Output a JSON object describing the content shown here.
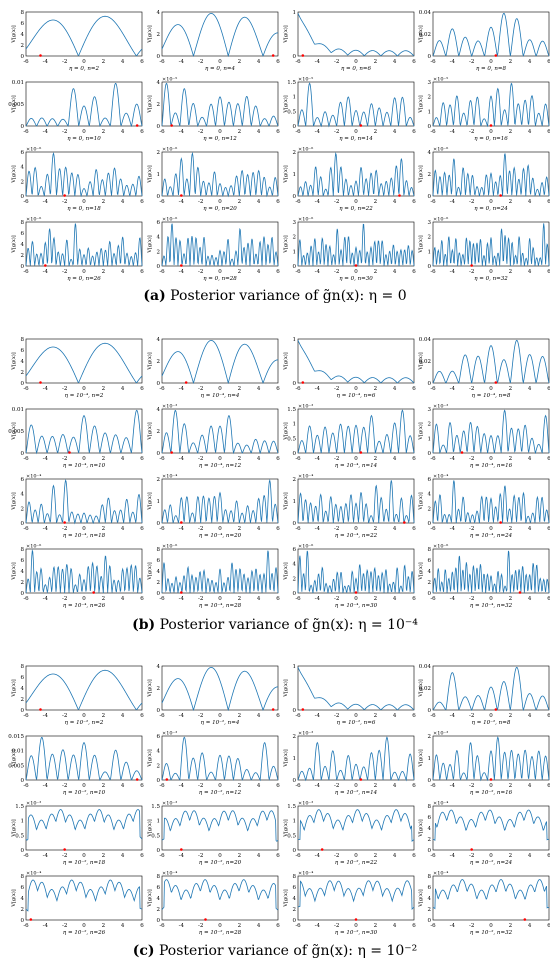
{
  "colors": {
    "curve": "#1f77b4",
    "marker": "#ff0000",
    "axis": "#000000"
  },
  "captions": [
    {
      "label": "(a)",
      "text": "Posterior variance of g̃n(x): η = 0"
    },
    {
      "label": "(b)",
      "text": "Posterior variance of g̃n(x): η = 10⁻⁴"
    },
    {
      "label": "(c)",
      "text": "Posterior variance of g̃n(x): η = 10⁻²"
    }
  ],
  "chart_data": {
    "type": "line",
    "ylabel": "V[g(x)]",
    "xlim": [
      -6,
      6
    ],
    "xticks": [
      "-6",
      "-4",
      "-2",
      "0",
      "2",
      "4",
      "6"
    ],
    "panels": [
      {
        "group": "a",
        "title": "η = 0, n=2",
        "ymax": 8,
        "yticks": [
          "0",
          "2",
          "4",
          "6",
          "8"
        ],
        "exp": "",
        "style": "smooth",
        "lobes": 3,
        "marker": -4.5
      },
      {
        "group": "a",
        "title": "η = 0, n=4",
        "ymax": 4,
        "yticks": [
          "0",
          "2",
          "4"
        ],
        "exp": "",
        "style": "smooth",
        "lobes": 5,
        "marker": 5.5
      },
      {
        "group": "a",
        "title": "η = 0, n=6",
        "ymax": 1,
        "yticks": [
          "0",
          "1"
        ],
        "exp": "",
        "style": "decay",
        "lobes": 7,
        "marker": -5.5
      },
      {
        "group": "a",
        "title": "η = 0, n=8",
        "ymax": 0.04,
        "yticks": [
          "0",
          "0.02",
          "0.04"
        ],
        "exp": "",
        "style": "peaks",
        "lobes": 9,
        "marker": 0.5
      },
      {
        "group": "a",
        "title": "η = 0, n=10",
        "ymax": 0.01,
        "yticks": [
          "0",
          "0.005",
          "0.01"
        ],
        "exp": "",
        "style": "peaks",
        "lobes": 11,
        "marker": 5.5
      },
      {
        "group": "a",
        "title": "η = 0, n=12",
        "ymax": 4,
        "yticks": [
          "0",
          "2",
          "4"
        ],
        "exp": "×10⁻⁵",
        "style": "peaks",
        "lobes": 13,
        "marker": -5
      },
      {
        "group": "a",
        "title": "η = 0, n=14",
        "ymax": 1.5,
        "yticks": [
          "0",
          "0.5",
          "1",
          "1.5"
        ],
        "exp": "×10⁻⁵",
        "style": "peaks",
        "lobes": 15,
        "marker": 0.5
      },
      {
        "group": "a",
        "title": "η = 0, n=16",
        "ymax": 3,
        "yticks": [
          "0",
          "1",
          "2",
          "3"
        ],
        "exp": "×10⁻⁵",
        "style": "peaks",
        "lobes": 17,
        "marker": 0
      },
      {
        "group": "a",
        "title": "η = 0, n=18",
        "ymax": 6,
        "yticks": [
          "0",
          "2",
          "4",
          "6"
        ],
        "exp": "×10⁻⁶",
        "style": "peaks",
        "lobes": 19,
        "marker": -2
      },
      {
        "group": "a",
        "title": "η = 0, n=20",
        "ymax": 2,
        "yticks": [
          "0",
          "1",
          "2"
        ],
        "exp": "×10⁻⁶",
        "style": "peaks",
        "lobes": 21,
        "marker": -4
      },
      {
        "group": "a",
        "title": "η = 0, n=22",
        "ymax": 2,
        "yticks": [
          "0",
          "1",
          "2"
        ],
        "exp": "×10⁻⁶",
        "style": "peaks",
        "lobes": 23,
        "marker": 4.5
      },
      {
        "group": "a",
        "title": "η = 0, n=24",
        "ymax": 4,
        "yticks": [
          "0",
          "2",
          "4"
        ],
        "exp": "×10⁻⁶",
        "style": "peaks",
        "lobes": 25,
        "marker": 1
      },
      {
        "group": "a",
        "title": "η = 0, n=26",
        "ymax": 8,
        "yticks": [
          "0",
          "2",
          "4",
          "6",
          "8"
        ],
        "exp": "×10⁻⁶",
        "style": "peaks",
        "lobes": 27,
        "marker": -4
      },
      {
        "group": "a",
        "title": "η = 0, n=28",
        "ymax": 6,
        "yticks": [
          "0",
          "2",
          "4",
          "6"
        ],
        "exp": "×10⁻⁶",
        "style": "peaks",
        "lobes": 29,
        "marker": -4
      },
      {
        "group": "a",
        "title": "η = 0, n=30",
        "ymax": 3,
        "yticks": [
          "0",
          "1",
          "2",
          "3"
        ],
        "exp": "×10⁻⁶",
        "style": "peaks",
        "lobes": 31,
        "marker": 0
      },
      {
        "group": "a",
        "title": "η = 0, n=32",
        "ymax": 3,
        "yticks": [
          "0",
          "1",
          "2",
          "3"
        ],
        "exp": "×10⁻⁶",
        "style": "peaks",
        "lobes": 33,
        "marker": -2
      },
      {
        "group": "b",
        "title": "η = 10⁻⁴, n=2",
        "ymax": 8,
        "yticks": [
          "0",
          "2",
          "4",
          "6",
          "8"
        ],
        "exp": "",
        "style": "smooth",
        "lobes": 3,
        "marker": -4.5
      },
      {
        "group": "b",
        "title": "η = 10⁻⁴, n=4",
        "ymax": 4,
        "yticks": [
          "0",
          "2",
          "4"
        ],
        "exp": "",
        "style": "smooth",
        "lobes": 5,
        "marker": -3.5
      },
      {
        "group": "b",
        "title": "η = 10⁻⁴, n=6",
        "ymax": 1,
        "yticks": [
          "0",
          "1"
        ],
        "exp": "",
        "style": "decay",
        "lobes": 7,
        "marker": -5.5
      },
      {
        "group": "b",
        "title": "η = 10⁻⁴, n=8",
        "ymax": 0.04,
        "yticks": [
          "0",
          "0.02",
          "0.04"
        ],
        "exp": "",
        "style": "peaks",
        "lobes": 9,
        "marker": 0.5
      },
      {
        "group": "b",
        "title": "η = 10⁻⁴, n=10",
        "ymax": 0.01,
        "yticks": [
          "0",
          "0.005",
          "0.01"
        ],
        "exp": "",
        "style": "peaks",
        "lobes": 11,
        "marker": -1.5
      },
      {
        "group": "b",
        "title": "η = 10⁻⁴, n=12",
        "ymax": 4,
        "yticks": [
          "0",
          "2",
          "4"
        ],
        "exp": "×10⁻³",
        "style": "peaks",
        "lobes": 13,
        "marker": -5
      },
      {
        "group": "b",
        "title": "η = 10⁻⁴, n=14",
        "ymax": 1.5,
        "yticks": [
          "0",
          "0.5",
          "1",
          "1.5"
        ],
        "exp": "×10⁻³",
        "style": "peaks",
        "lobes": 15,
        "marker": 0.5
      },
      {
        "group": "b",
        "title": "η = 10⁻⁴, n=16",
        "ymax": 3,
        "yticks": [
          "0",
          "1",
          "2",
          "3"
        ],
        "exp": "×10⁻³",
        "style": "peaks",
        "lobes": 17,
        "marker": -3
      },
      {
        "group": "b",
        "title": "η = 10⁻⁴, n=18",
        "ymax": 6,
        "yticks": [
          "0",
          "2",
          "4",
          "6"
        ],
        "exp": "×10⁻⁴",
        "style": "peaks",
        "lobes": 19,
        "marker": -2
      },
      {
        "group": "b",
        "title": "η = 10⁻⁴, n=20",
        "ymax": 2,
        "yticks": [
          "0",
          "1",
          "2"
        ],
        "exp": "×10⁻⁴",
        "style": "peaks",
        "lobes": 21,
        "marker": -4
      },
      {
        "group": "b",
        "title": "η = 10⁻⁴, n=22",
        "ymax": 2,
        "yticks": [
          "0",
          "1",
          "2"
        ],
        "exp": "×10⁻⁴",
        "style": "peaks",
        "lobes": 23,
        "marker": 5
      },
      {
        "group": "b",
        "title": "η = 10⁻⁴, n=24",
        "ymax": 6,
        "yticks": [
          "0",
          "2",
          "4",
          "6"
        ],
        "exp": "×10⁻⁴",
        "style": "peaks",
        "lobes": 25,
        "marker": 1
      },
      {
        "group": "b",
        "title": "η = 10⁻⁴, n=26",
        "ymax": 8,
        "yticks": [
          "0",
          "2",
          "4",
          "6",
          "8"
        ],
        "exp": "×10⁻⁶",
        "style": "peaks",
        "lobes": 27,
        "marker": 1
      },
      {
        "group": "b",
        "title": "η = 10⁻⁴, n=28",
        "ymax": 8,
        "yticks": [
          "0",
          "2",
          "4",
          "6",
          "8"
        ],
        "exp": "×10⁻⁶",
        "style": "peaks",
        "lobes": 29,
        "marker": -4
      },
      {
        "group": "b",
        "title": "η = 10⁻⁴, n=30",
        "ymax": 6,
        "yticks": [
          "0",
          "2",
          "4",
          "6"
        ],
        "exp": "×10⁻⁶",
        "style": "peaks",
        "lobes": 31,
        "marker": 0
      },
      {
        "group": "b",
        "title": "η = 10⁻⁴, n=32",
        "ymax": 8,
        "yticks": [
          "0",
          "2",
          "4",
          "6",
          "8"
        ],
        "exp": "×10⁻⁶",
        "style": "peaks",
        "lobes": 33,
        "marker": 3
      },
      {
        "group": "c",
        "title": "η = 10⁻², n=2",
        "ymax": 8,
        "yticks": [
          "0",
          "2",
          "4",
          "6",
          "8"
        ],
        "exp": "",
        "style": "smooth",
        "lobes": 3,
        "marker": -4.5
      },
      {
        "group": "c",
        "title": "η = 10⁻², n=4",
        "ymax": 4,
        "yticks": [
          "0",
          "2",
          "4"
        ],
        "exp": "",
        "style": "smooth",
        "lobes": 5,
        "marker": 5.5
      },
      {
        "group": "c",
        "title": "η = 10⁻², n=6",
        "ymax": 1,
        "yticks": [
          "0",
          "1"
        ],
        "exp": "",
        "style": "decay",
        "lobes": 7,
        "marker": -5.5
      },
      {
        "group": "c",
        "title": "η = 10⁻², n=8",
        "ymax": 0.04,
        "yticks": [
          "0",
          "0.02",
          "0.04"
        ],
        "exp": "",
        "style": "peaks",
        "lobes": 9,
        "marker": 0.5
      },
      {
        "group": "c",
        "title": "η = 10⁻², n=10",
        "ymax": 0.015,
        "yticks": [
          "0",
          "0.005",
          "0.01",
          "0.015"
        ],
        "exp": "",
        "style": "peaks",
        "lobes": 11,
        "marker": 5.5
      },
      {
        "group": "c",
        "title": "η = 10⁻², n=12",
        "ymax": 6,
        "yticks": [
          "0",
          "2",
          "4",
          "6"
        ],
        "exp": "×10⁻³",
        "style": "peaks",
        "lobes": 13,
        "marker": -5.5
      },
      {
        "group": "c",
        "title": "η = 10⁻², n=14",
        "ymax": 2,
        "yticks": [
          "0",
          "1",
          "2"
        ],
        "exp": "×10⁻³",
        "style": "peaks",
        "lobes": 15,
        "marker": 0.5
      },
      {
        "group": "c",
        "title": "η = 10⁻², n=16",
        "ymax": 2,
        "yticks": [
          "0",
          "1",
          "2"
        ],
        "exp": "×10⁻³",
        "style": "peaks",
        "lobes": 17,
        "marker": 0
      },
      {
        "group": "c",
        "title": "η = 10⁻², n=18",
        "ymax": 1.5,
        "yticks": [
          "0",
          "0.5",
          "1",
          "1.5"
        ],
        "exp": "×10⁻³",
        "style": "flat",
        "lobes": 12,
        "marker": -2
      },
      {
        "group": "c",
        "title": "η = 10⁻², n=20",
        "ymax": 1.5,
        "yticks": [
          "0",
          "0.5",
          "1",
          "1.5"
        ],
        "exp": "×10⁻³",
        "style": "flat",
        "lobes": 12,
        "marker": -4
      },
      {
        "group": "c",
        "title": "η = 10⁻², n=22",
        "ymax": 1.5,
        "yticks": [
          "0",
          "0.5",
          "1",
          "1.5"
        ],
        "exp": "×10⁻³",
        "style": "flat",
        "lobes": 12,
        "marker": -3.5
      },
      {
        "group": "c",
        "title": "η = 10⁻², n=24",
        "ymax": 8,
        "yticks": [
          "0",
          "2",
          "4",
          "6",
          "8"
        ],
        "exp": "×10⁻⁴",
        "style": "flat",
        "lobes": 12,
        "marker": -2
      },
      {
        "group": "c",
        "title": "η = 10⁻², n=26",
        "ymax": 8,
        "yticks": [
          "0",
          "2",
          "4",
          "6",
          "8"
        ],
        "exp": "×10⁻⁴",
        "style": "flat",
        "lobes": 12,
        "marker": -5.5
      },
      {
        "group": "c",
        "title": "η = 10⁻², n=28",
        "ymax": 8,
        "yticks": [
          "0",
          "2",
          "4",
          "6",
          "8"
        ],
        "exp": "×10⁻⁴",
        "style": "flat",
        "lobes": 12,
        "marker": -1.5
      },
      {
        "group": "c",
        "title": "η = 10⁻², n=30",
        "ymax": 8,
        "yticks": [
          "0",
          "2",
          "4",
          "6",
          "8"
        ],
        "exp": "×10⁻⁴",
        "style": "flat",
        "lobes": 12,
        "marker": 0
      },
      {
        "group": "c",
        "title": "η = 10⁻², n=32",
        "ymax": 8,
        "yticks": [
          "0",
          "2",
          "4",
          "6",
          "8"
        ],
        "exp": "×10⁻⁴",
        "style": "flat",
        "lobes": 12,
        "marker": 3.5
      }
    ]
  }
}
